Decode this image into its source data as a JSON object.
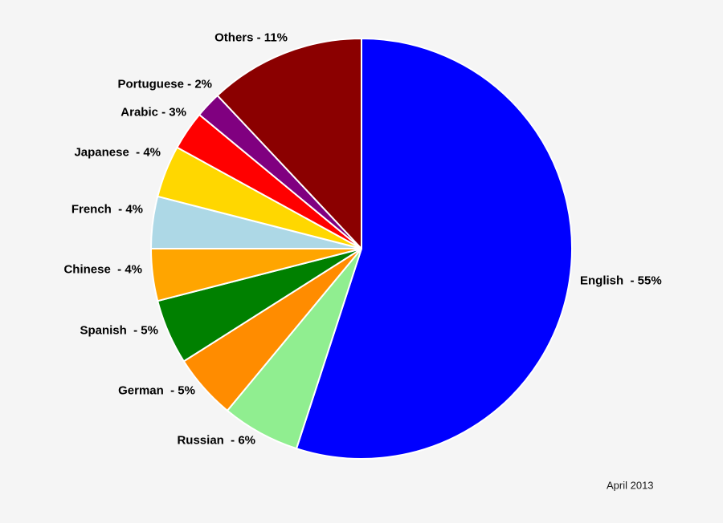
{
  "chart_data": {
    "type": "pie",
    "title": "",
    "start_angle": "top",
    "direction": "clockwise",
    "background_color": "#f5f5f5",
    "separator_color": "#ffffff",
    "footnote": "April 2013",
    "slices": [
      {
        "label": "English",
        "value": 55,
        "display": "English  - 55%",
        "color": "#0000ff"
      },
      {
        "label": "Russian",
        "value": 6,
        "display": "Russian  - 6%",
        "color": "#90ee90"
      },
      {
        "label": "German",
        "value": 5,
        "display": "German  - 5%",
        "color": "#ff8c00"
      },
      {
        "label": "Spanish",
        "value": 5,
        "display": "Spanish  - 5%",
        "color": "#008000"
      },
      {
        "label": "Chinese",
        "value": 4,
        "display": "Chinese  - 4%",
        "color": "#ffa500"
      },
      {
        "label": "French",
        "value": 4,
        "display": "French  - 4%",
        "color": "#add8e6"
      },
      {
        "label": "Japanese",
        "value": 4,
        "display": "Japanese  - 4%",
        "color": "#ffd700"
      },
      {
        "label": "Arabic",
        "value": 3,
        "display": "Arabic - 3%",
        "color": "#ff0000"
      },
      {
        "label": "Portuguese",
        "value": 2,
        "display": "Portuguese - 2%",
        "color": "#800080"
      },
      {
        "label": "Others",
        "value": 11,
        "display": "Others - 11%",
        "color": "#8b0000"
      }
    ]
  }
}
